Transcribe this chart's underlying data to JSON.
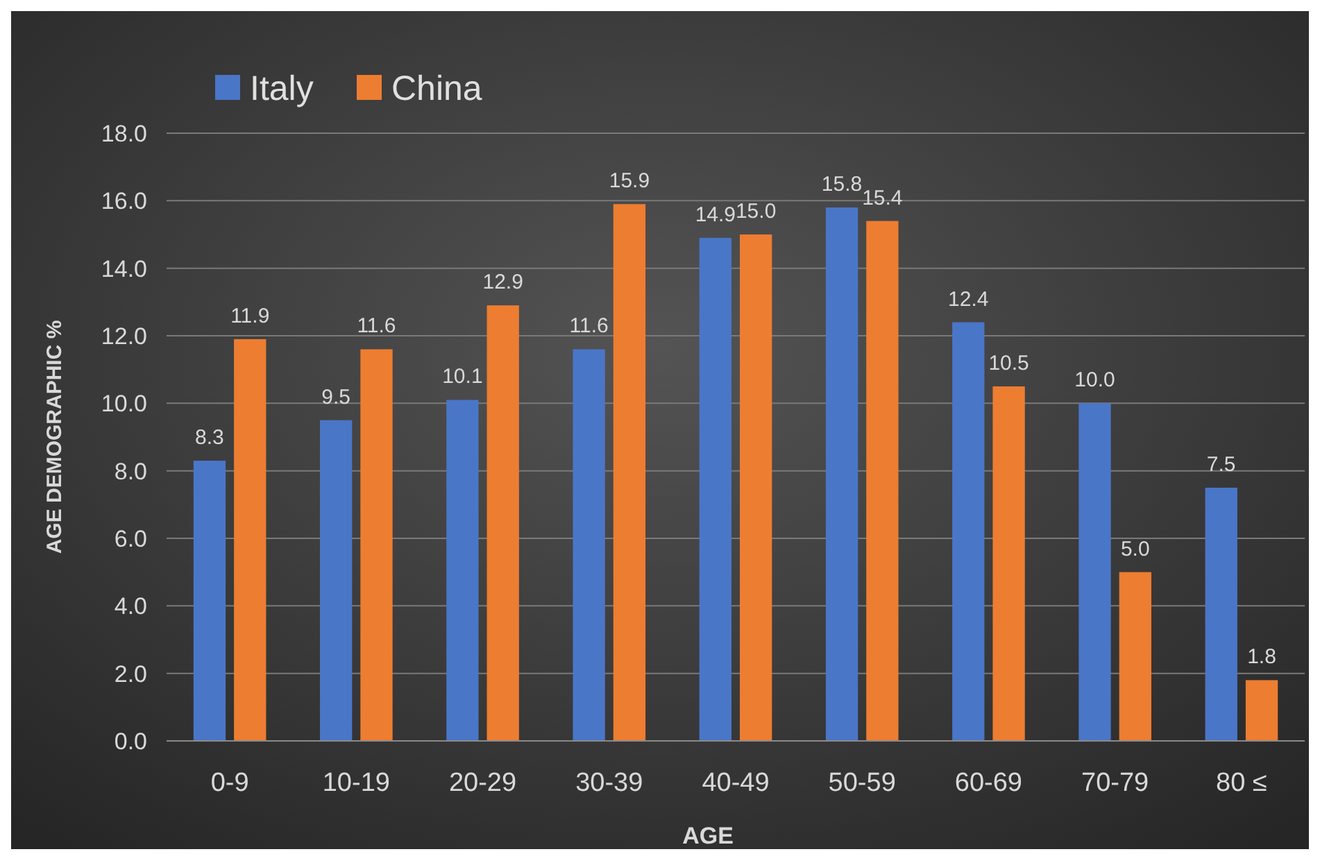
{
  "chart_data": {
    "type": "bar",
    "xlabel": "AGE",
    "ylabel": "AGE DEMOGRAPHIC %",
    "categories": [
      "0-9",
      "10-19",
      "20-29",
      "30-39",
      "40-49",
      "50-59",
      "60-69",
      "70-79",
      "80 ≤"
    ],
    "series": [
      {
        "name": "Italy",
        "color": "#4a76c8",
        "values": [
          8.3,
          9.5,
          10.1,
          11.6,
          14.9,
          15.8,
          12.4,
          10.0,
          7.5
        ],
        "value_labels": [
          "8.3",
          "9.5",
          "10.1",
          "11.6",
          "14.9",
          "15.8",
          "12.4",
          "10.0",
          "7.5"
        ]
      },
      {
        "name": "China",
        "color": "#ed7d31",
        "values": [
          11.9,
          11.6,
          12.9,
          15.9,
          15.0,
          15.4,
          10.5,
          5.0,
          1.8
        ],
        "value_labels": [
          "11.9",
          "11.6",
          "12.9",
          "15.9",
          "15.0",
          "15.4",
          "10.5",
          "5.0",
          "1.8"
        ]
      }
    ],
    "ylim": [
      0,
      18
    ],
    "yticks": [
      {
        "value": 0,
        "label": "0.0"
      },
      {
        "value": 2,
        "label": "2.0"
      },
      {
        "value": 4,
        "label": "4.0"
      },
      {
        "value": 6,
        "label": "6.0"
      },
      {
        "value": 8,
        "label": "8.0"
      },
      {
        "value": 10,
        "label": "10.0"
      },
      {
        "value": 12,
        "label": "12.0"
      },
      {
        "value": 14,
        "label": "14.0"
      },
      {
        "value": 16,
        "label": "16.0"
      },
      {
        "value": 18,
        "label": "18.0"
      }
    ],
    "grid": "y",
    "legend": "top left"
  }
}
